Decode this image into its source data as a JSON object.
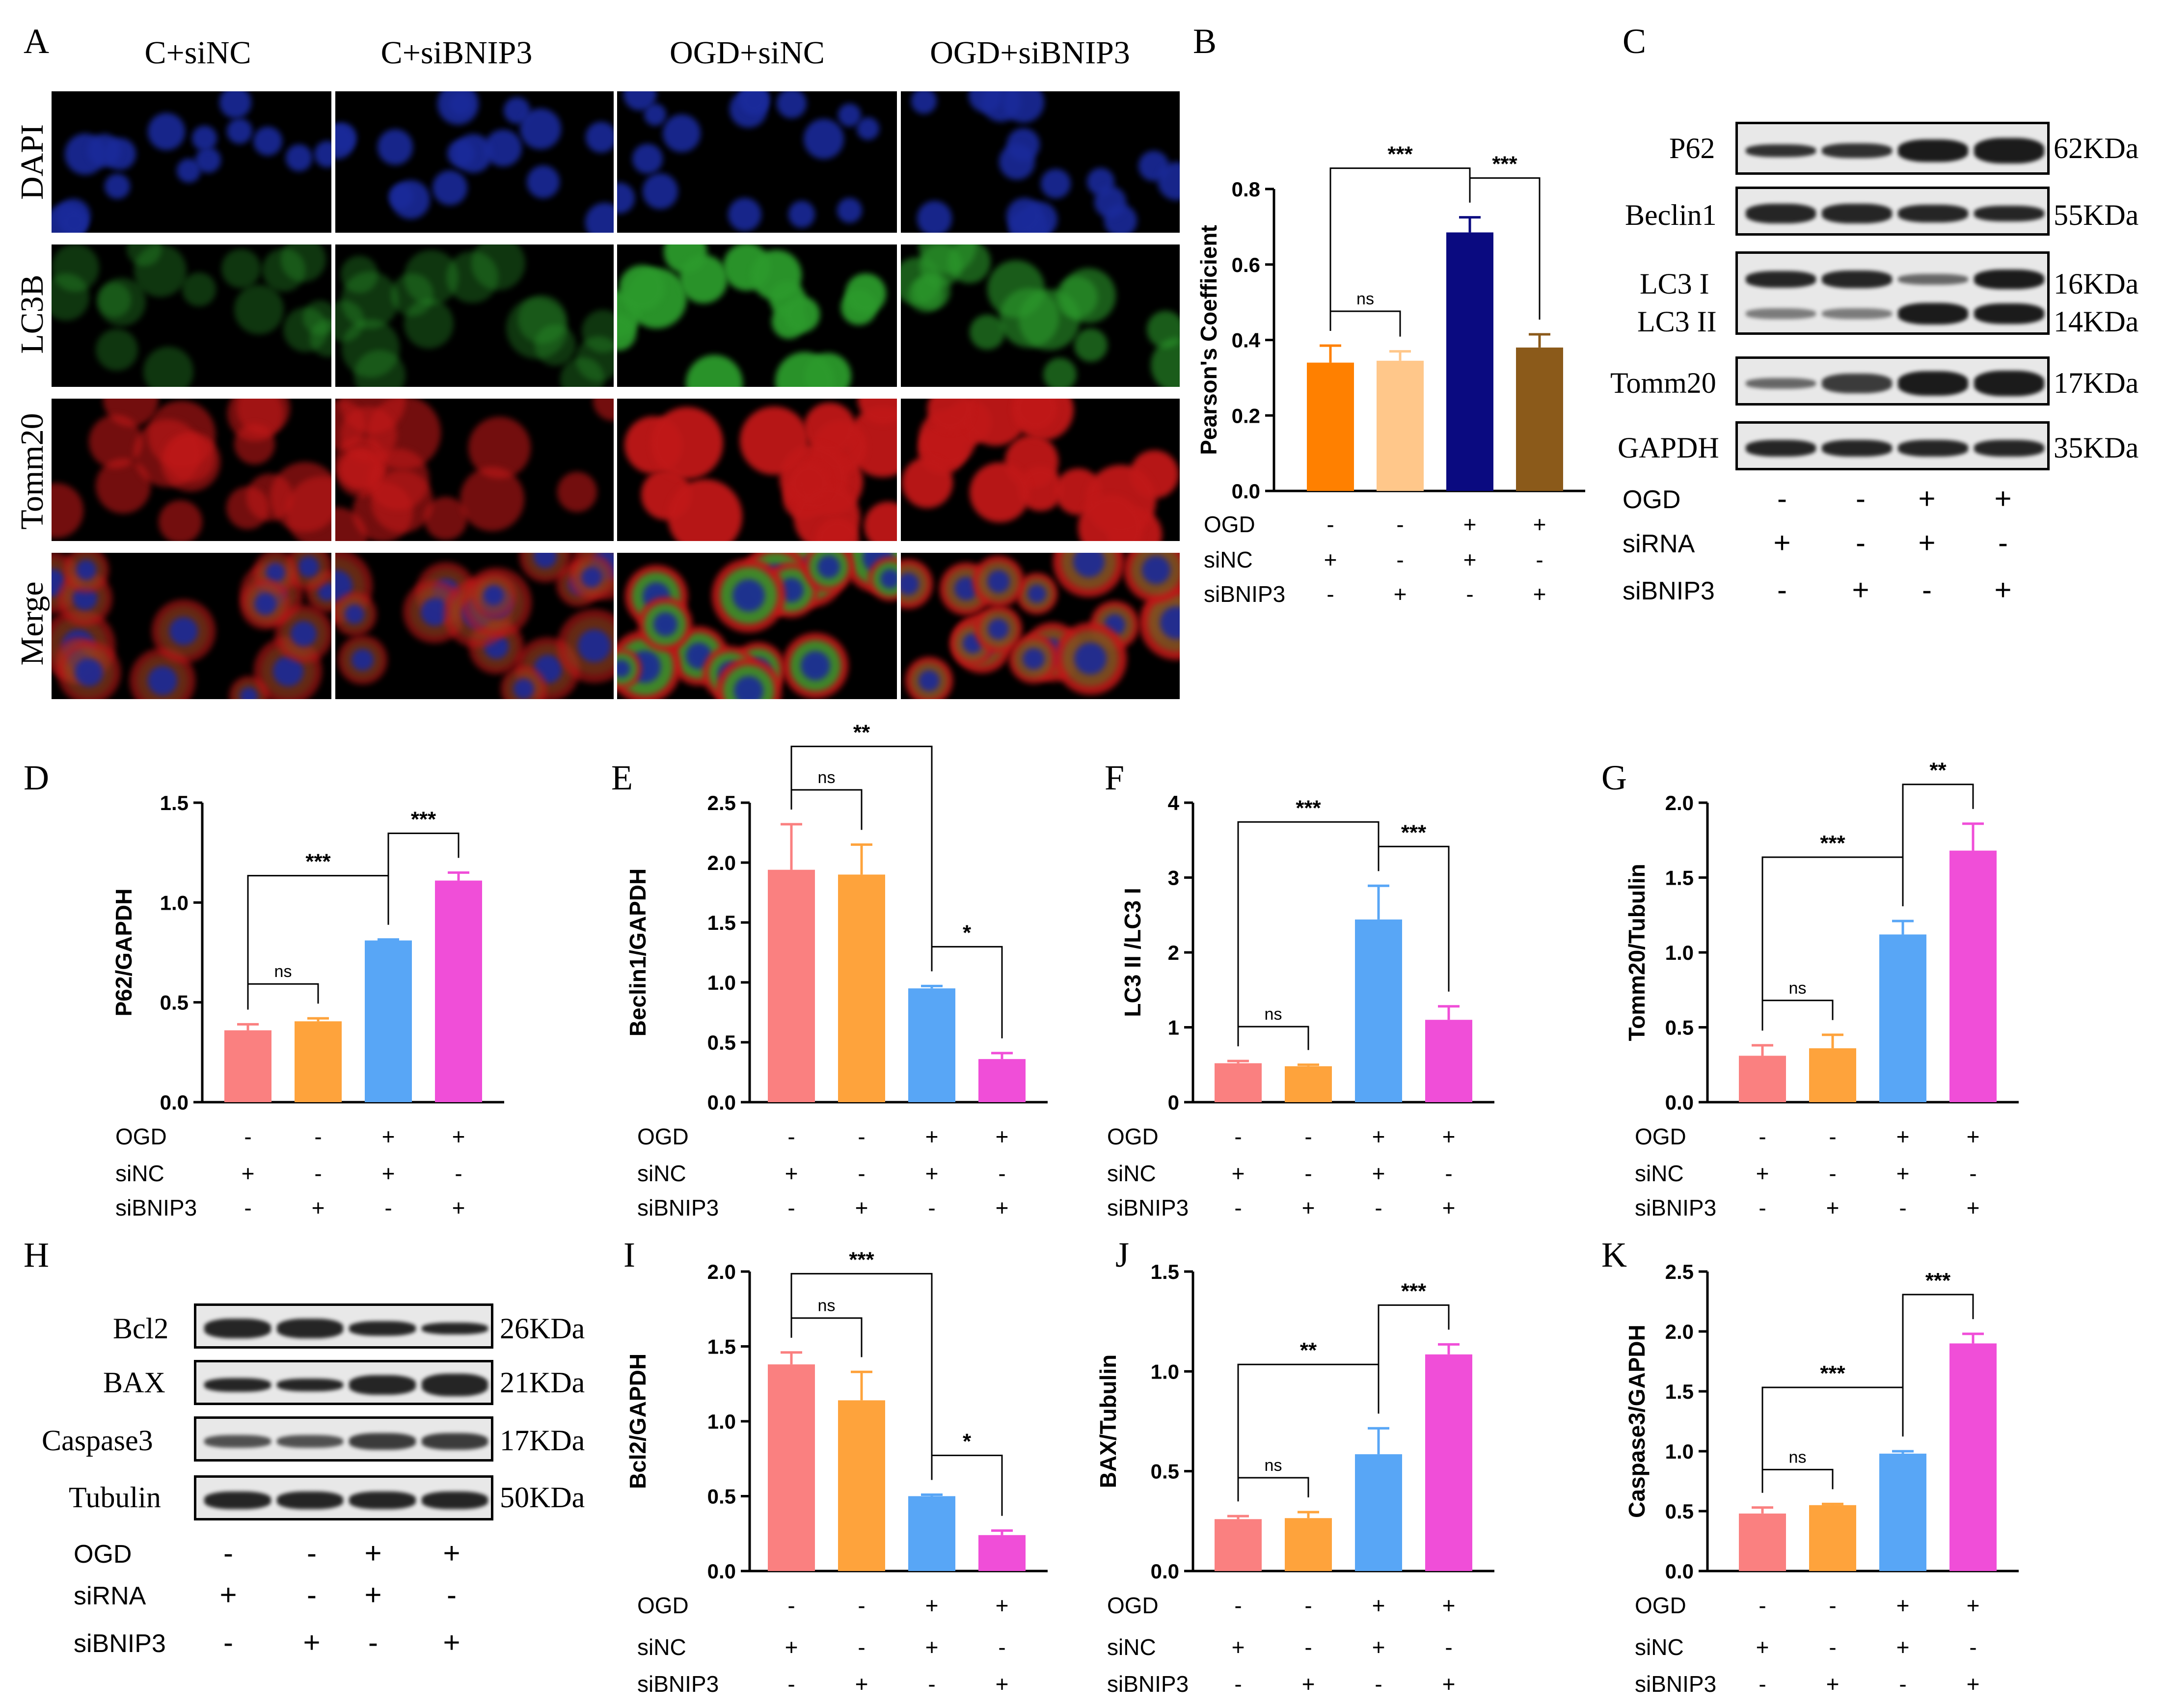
{
  "panel_labels": [
    "A",
    "B",
    "C",
    "D",
    "E",
    "F",
    "G",
    "H",
    "I",
    "J",
    "K"
  ],
  "panel_a": {
    "columns": [
      "C+siNC",
      "C+siBNIP3",
      "OGD+siNC",
      "OGD+siBNIP3"
    ],
    "rows": [
      "DAPI",
      "LC3B",
      "Tomm20",
      "Merge"
    ]
  },
  "panel_c": {
    "rows": [
      {
        "name": "P62",
        "kda": "62KDa"
      },
      {
        "name": "Beclin1",
        "kda": "55KDa"
      },
      {
        "name": "LC3 I",
        "kda": "16KDa"
      },
      {
        "name": "LC3 II",
        "kda": "14KDa"
      },
      {
        "name": "Tomm20",
        "kda": "17KDa"
      },
      {
        "name": "GAPDH",
        "kda": "35KDa"
      }
    ],
    "conditions": [
      {
        "name": "OGD",
        "symbols": [
          "-",
          "-",
          "+",
          "+"
        ]
      },
      {
        "name": "siRNA",
        "symbols": [
          "+",
          "-",
          "+",
          "-"
        ]
      },
      {
        "name": "siBNIP3",
        "symbols": [
          "-",
          "+",
          "-",
          "+"
        ]
      }
    ]
  },
  "panel_h": {
    "rows": [
      {
        "name": "Bcl2",
        "kda": "26KDa"
      },
      {
        "name": "BAX",
        "kda": "21KDa"
      },
      {
        "name": "Caspase3",
        "kda": "17KDa"
      },
      {
        "name": "Tubulin",
        "kda": "50KDa"
      }
    ],
    "conditions": [
      {
        "name": "OGD",
        "symbols": [
          "-",
          "-",
          "+",
          "+"
        ]
      },
      {
        "name": "siRNA",
        "symbols": [
          "+",
          "-",
          "+",
          "-"
        ]
      },
      {
        "name": "siBNIP3",
        "symbols": [
          "-",
          "+",
          "-",
          "+"
        ]
      }
    ]
  },
  "colors": {
    "dapi": "#1a2a9a",
    "lc3b": "#2c9a2c",
    "tomm20": "#c01818",
    "b_bars": [
      "#ff8000",
      "#ffc78a",
      "#0a0a80",
      "#8b5a1a"
    ],
    "bars": [
      "#fa8080",
      "#fea33c",
      "#58a6f6",
      "#f04ed8"
    ]
  },
  "conditions_chart": [
    {
      "name": "OGD",
      "symbols": [
        "-",
        "-",
        "+",
        "+"
      ]
    },
    {
      "name": "siNC",
      "symbols": [
        "+",
        "-",
        "+",
        "-"
      ]
    },
    {
      "name": "siBNIP3",
      "symbols": [
        "-",
        "+",
        "-",
        "+"
      ]
    }
  ],
  "chart_data": [
    {
      "id": "B",
      "type": "bar",
      "ylabel": "Pearson's Coefficient",
      "ylim": [
        0,
        0.8
      ],
      "ticks": [
        "0.0",
        "0.2",
        "0.4",
        "0.6",
        "0.8"
      ],
      "values": [
        0.34,
        0.345,
        0.685,
        0.38
      ],
      "errors": [
        0.045,
        0.025,
        0.04,
        0.035
      ],
      "sig": [
        {
          "text": "ns",
          "from": 0,
          "to": 1
        },
        {
          "text": "***",
          "from": 0,
          "to": 2
        },
        {
          "text": "***",
          "from": 2,
          "to": 3
        }
      ]
    },
    {
      "id": "D",
      "type": "bar",
      "ylabel": "P62/GAPDH",
      "ylim": [
        0,
        1.5
      ],
      "ticks": [
        "0.0",
        "0.5",
        "1.0",
        "1.5"
      ],
      "values": [
        0.36,
        0.405,
        0.81,
        1.11
      ],
      "errors": [
        0.03,
        0.015,
        0.005,
        0.04
      ],
      "sig": [
        {
          "text": "ns",
          "from": 0,
          "to": 1
        },
        {
          "text": "***",
          "from": 0,
          "to": 2
        },
        {
          "text": "***",
          "from": 2,
          "to": 3
        }
      ]
    },
    {
      "id": "E",
      "type": "bar",
      "ylabel": "Beclin1/GAPDH",
      "ylim": [
        0,
        2.5
      ],
      "ticks": [
        "0.0",
        "0.5",
        "1.0",
        "1.5",
        "2.0",
        "2.5"
      ],
      "values": [
        1.94,
        1.9,
        0.95,
        0.36
      ],
      "errors": [
        0.38,
        0.25,
        0.02,
        0.05
      ],
      "sig": [
        {
          "text": "ns",
          "from": 0,
          "to": 1
        },
        {
          "text": "**",
          "from": 0,
          "to": 2
        },
        {
          "text": "*",
          "from": 2,
          "to": 3
        }
      ]
    },
    {
      "id": "F",
      "type": "bar",
      "ylabel": "LC3 II /LC3 I",
      "ylim": [
        0,
        4
      ],
      "ticks": [
        "0",
        "1",
        "2",
        "3",
        "4"
      ],
      "values": [
        0.52,
        0.48,
        2.44,
        1.1
      ],
      "errors": [
        0.03,
        0.02,
        0.45,
        0.18
      ],
      "sig": [
        {
          "text": "ns",
          "from": 0,
          "to": 1
        },
        {
          "text": "***",
          "from": 0,
          "to": 2
        },
        {
          "text": "***",
          "from": 2,
          "to": 3
        }
      ]
    },
    {
      "id": "G",
      "type": "bar",
      "ylabel": "Tomm20/Tubulin",
      "ylim": [
        0,
        2.0
      ],
      "ticks": [
        "0.0",
        "0.5",
        "1.0",
        "1.5",
        "2.0"
      ],
      "values": [
        0.31,
        0.36,
        1.12,
        1.68
      ],
      "errors": [
        0.07,
        0.09,
        0.09,
        0.18
      ],
      "sig": [
        {
          "text": "ns",
          "from": 0,
          "to": 1
        },
        {
          "text": "***",
          "from": 0,
          "to": 2
        },
        {
          "text": "**",
          "from": 2,
          "to": 3
        }
      ]
    },
    {
      "id": "I",
      "type": "bar",
      "ylabel": "Bcl2/GAPDH",
      "ylim": [
        0,
        2.0
      ],
      "ticks": [
        "0.0",
        "0.5",
        "1.0",
        "1.5",
        "2.0"
      ],
      "values": [
        1.38,
        1.14,
        0.5,
        0.24
      ],
      "errors": [
        0.08,
        0.19,
        0.01,
        0.03
      ],
      "sig": [
        {
          "text": "ns",
          "from": 0,
          "to": 1
        },
        {
          "text": "***",
          "from": 0,
          "to": 2
        },
        {
          "text": "*",
          "from": 2,
          "to": 3
        }
      ]
    },
    {
      "id": "J",
      "type": "bar",
      "ylabel": "BAX/Tubulin",
      "ylim": [
        0,
        1.5
      ],
      "ticks": [
        "0.0",
        "0.5",
        "1.0",
        "1.5"
      ],
      "values": [
        0.26,
        0.265,
        0.585,
        1.085
      ],
      "errors": [
        0.015,
        0.03,
        0.13,
        0.05
      ],
      "sig": [
        {
          "text": "ns",
          "from": 0,
          "to": 1
        },
        {
          "text": "**",
          "from": 0,
          "to": 2
        },
        {
          "text": "***",
          "from": 2,
          "to": 3
        }
      ]
    },
    {
      "id": "K",
      "type": "bar",
      "ylabel": "Caspase3/GAPDH",
      "ylim": [
        0,
        2.5
      ],
      "ticks": [
        "0.0",
        "0.5",
        "1.0",
        "1.5",
        "2.0",
        "2.5"
      ],
      "values": [
        0.48,
        0.55,
        0.98,
        1.9
      ],
      "errors": [
        0.05,
        0.01,
        0.02,
        0.08
      ],
      "sig": [
        {
          "text": "ns",
          "from": 0,
          "to": 1
        },
        {
          "text": "***",
          "from": 0,
          "to": 2
        },
        {
          "text": "***",
          "from": 2,
          "to": 3
        }
      ]
    }
  ]
}
